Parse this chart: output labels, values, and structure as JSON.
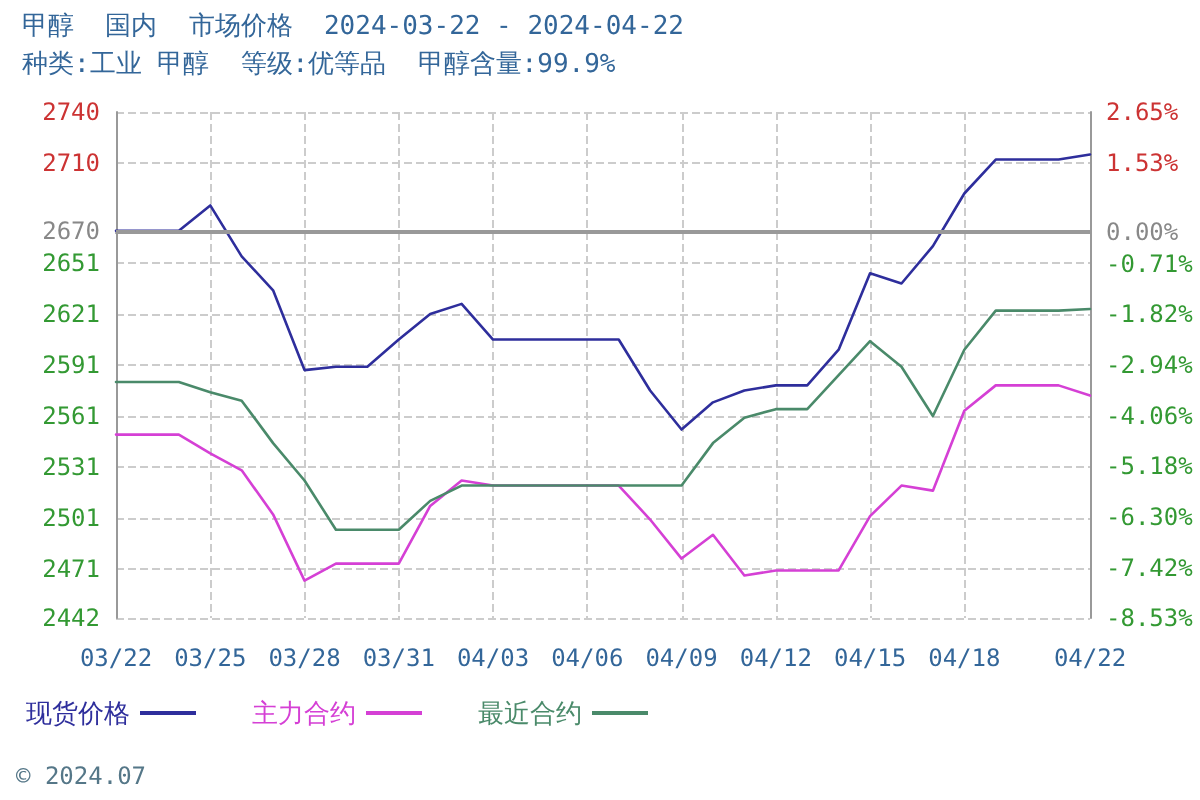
{
  "chart_data": {
    "type": "line",
    "title": "甲醇  国内  市场价格  2024-03-22 - 2024-04-22",
    "subtitle": "种类:工业 甲醇  等级:优等品  甲醇含量:99.9%",
    "x": [
      "2024-03-22",
      "2024-03-23",
      "2024-03-24",
      "2024-03-25",
      "2024-03-26",
      "2024-03-27",
      "2024-03-28",
      "2024-03-29",
      "2024-03-30",
      "2024-03-31",
      "2024-04-01",
      "2024-04-02",
      "2024-04-03",
      "2024-04-04",
      "2024-04-05",
      "2024-04-06",
      "2024-04-07",
      "2024-04-08",
      "2024-04-09",
      "2024-04-10",
      "2024-04-11",
      "2024-04-12",
      "2024-04-13",
      "2024-04-14",
      "2024-04-15",
      "2024-04-16",
      "2024-04-17",
      "2024-04-18",
      "2024-04-19",
      "2024-04-20",
      "2024-04-21",
      "2024-04-22"
    ],
    "series": [
      {
        "name": "现货价格",
        "color": "#2e2e9c",
        "values": [
          2670,
          2670,
          2670,
          2685,
          2655,
          2635,
          2588,
          2590,
          2590,
          2606,
          2621,
          2627,
          2606,
          2606,
          2606,
          2606,
          2606,
          2576,
          2553,
          2569,
          2576,
          2579,
          2579,
          2600,
          2645,
          2639,
          2661,
          2692,
          2712,
          2712,
          2712,
          2715
        ]
      },
      {
        "name": "主力合约",
        "color": "#d540d5",
        "values": [
          2550,
          2550,
          2550,
          2539,
          2529,
          2503,
          2464,
          2474,
          2474,
          2474,
          2508,
          2523,
          2520,
          2520,
          2520,
          2520,
          2520,
          2500,
          2477,
          2491,
          2467,
          2470,
          2470,
          2470,
          2502,
          2520,
          2517,
          2564,
          2579,
          2579,
          2579,
          2573
        ]
      },
      {
        "name": "最近合约",
        "color": "#4a8a6a",
        "values": [
          2581,
          2581,
          2581,
          2575,
          2570,
          2545,
          2523,
          2494,
          2494,
          2494,
          2511,
          2520,
          2520,
          2520,
          2520,
          2520,
          2520,
          2520,
          2520,
          2545,
          2560,
          2565,
          2565,
          2585,
          2605,
          2590,
          2561,
          2600,
          2623,
          2623,
          2623,
          2624
        ]
      }
    ],
    "xlim": [
      "2024-03-22",
      "2024-04-22"
    ],
    "xticks": [
      {
        "value": "2024-03-22",
        "label": "03/22"
      },
      {
        "value": "2024-03-25",
        "label": "03/25"
      },
      {
        "value": "2024-03-28",
        "label": "03/28"
      },
      {
        "value": "2024-03-31",
        "label": "03/31"
      },
      {
        "value": "2024-04-03",
        "label": "04/03"
      },
      {
        "value": "2024-04-06",
        "label": "04/06"
      },
      {
        "value": "2024-04-09",
        "label": "04/09"
      },
      {
        "value": "2024-04-12",
        "label": "04/12"
      },
      {
        "value": "2024-04-15",
        "label": "04/15"
      },
      {
        "value": "2024-04-18",
        "label": "04/18"
      },
      {
        "value": "2024-04-22",
        "label": "04/22"
      }
    ],
    "ylim": [
      2442,
      2740
    ],
    "yticks": [
      2442,
      2471,
      2501,
      2531,
      2561,
      2591,
      2621,
      2651,
      2670,
      2710,
      2740
    ],
    "y2lim": [
      -8.53,
      2.65
    ],
    "y2ticks": [
      {
        "value": -8.53,
        "label": "-8.53%"
      },
      {
        "value": -7.42,
        "label": "-7.42%"
      },
      {
        "value": -6.3,
        "label": "-6.30%"
      },
      {
        "value": -5.18,
        "label": "-5.18%"
      },
      {
        "value": -4.06,
        "label": "-4.06%"
      },
      {
        "value": -2.94,
        "label": "-2.94%"
      },
      {
        "value": -1.82,
        "label": "-1.82%"
      },
      {
        "value": -0.71,
        "label": "-0.71%"
      },
      {
        "value": 0,
        "label": "0.00%"
      },
      {
        "value": 1.53,
        "label": "1.53%"
      },
      {
        "value": 2.65,
        "label": "2.65%"
      }
    ],
    "ref_lines": [
      {
        "axis": "y",
        "value": 2670,
        "label": null,
        "color": "#999999",
        "line_style": "solid"
      }
    ],
    "grid": true,
    "legend": "bottom left",
    "marker": "none",
    "line_style": "solid",
    "annotations": [
      "© 2024.07"
    ]
  }
}
